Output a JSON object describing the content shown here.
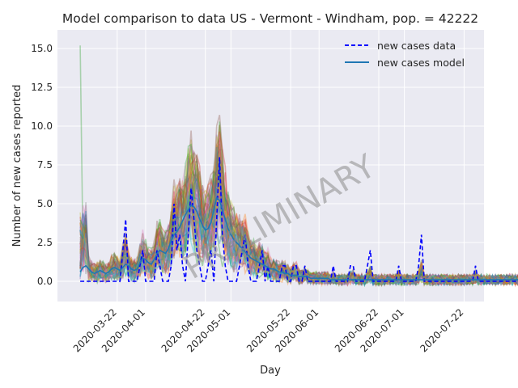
{
  "chart_data": {
    "type": "line",
    "title": "Model comparison to data US - Vermont - Windham, pop. = 42222",
    "xlabel": "Day",
    "ylabel": "Number of new cases reported",
    "x_start": "2020-03-09",
    "x_end": "2020-07-22",
    "xlim": [
      "2020-03-01",
      "2020-07-29"
    ],
    "ylim": [
      -1.3,
      16.2
    ],
    "y_ticks": [
      "0.0",
      "2.5",
      "5.0",
      "7.5",
      "10.0",
      "12.5",
      "15.0"
    ],
    "x_ticks": [
      "2020-03-22",
      "2020-04-01",
      "2020-04-22",
      "2020-05-01",
      "2020-05-22",
      "2020-06-01",
      "2020-06-22",
      "2020-07-01",
      "2020-07-22"
    ],
    "grid": true,
    "legend_position": "upper right",
    "watermark": "PRELIMINARY",
    "series": [
      {
        "name": "new cases data",
        "style": "dashed",
        "color": "#0000ff",
        "values": [
          0,
          0,
          0,
          0,
          0,
          0,
          0,
          0,
          0,
          0,
          0,
          0,
          0,
          0,
          0,
          2,
          4,
          0,
          0,
          0,
          0,
          1,
          2,
          0,
          0,
          0,
          0,
          2,
          1,
          0,
          0,
          0,
          1,
          5,
          2,
          3,
          1,
          0,
          3,
          6,
          4,
          2,
          1,
          0,
          0,
          1,
          2,
          0,
          4,
          8,
          3,
          1,
          0,
          0,
          0,
          0,
          1,
          2,
          3,
          1,
          0,
          0,
          0,
          1,
          2,
          0,
          1,
          0,
          0,
          0,
          0,
          1,
          1,
          0,
          0,
          1,
          1,
          0,
          0,
          1,
          0,
          0,
          0,
          0,
          0,
          0,
          0,
          0,
          0,
          1,
          0,
          0,
          0,
          0,
          0,
          1,
          1,
          0,
          0,
          0,
          0,
          1,
          2,
          0,
          0,
          0,
          0,
          0,
          0,
          0,
          0,
          0,
          1,
          0,
          0,
          0,
          0,
          0,
          0,
          1,
          3,
          0,
          0,
          0,
          0,
          0,
          0,
          0,
          0,
          0,
          0,
          0,
          0,
          0,
          0,
          0,
          0,
          0,
          0,
          1,
          0,
          0,
          0,
          0,
          0,
          0,
          0,
          0,
          0,
          0,
          0,
          0,
          0,
          0,
          0,
          0,
          0,
          0,
          0,
          0,
          1,
          0,
          0,
          1,
          0,
          0,
          0,
          0,
          0,
          0,
          0,
          0,
          0,
          0,
          0,
          1,
          0,
          0,
          0,
          0,
          0,
          0,
          0,
          0,
          0,
          0,
          0,
          0,
          0,
          0,
          1,
          2,
          4,
          2,
          0,
          0,
          0,
          1,
          0,
          0,
          1,
          0,
          0,
          0,
          0,
          1,
          0,
          0,
          0,
          0,
          0,
          1,
          3,
          1,
          0,
          0,
          0,
          0,
          0,
          0,
          1,
          0,
          0,
          1,
          0,
          0,
          0,
          0,
          0,
          0,
          0,
          0,
          0,
          0,
          0,
          0,
          0,
          0,
          0,
          0,
          0,
          0,
          0,
          0,
          0,
          0,
          0,
          0,
          0,
          0,
          0
        ]
      },
      {
        "name": "new cases model",
        "style": "solid",
        "color": "#1f77b4",
        "values": [
          0.6,
          0.9,
          1.0,
          0.8,
          0.6,
          0.5,
          0.6,
          0.7,
          0.6,
          0.5,
          0.6,
          0.8,
          0.9,
          0.8,
          0.7,
          0.9,
          1.1,
          1.0,
          0.8,
          0.7,
          0.8,
          1.2,
          1.5,
          1.4,
          1.2,
          1.1,
          1.4,
          1.8,
          2.0,
          1.9,
          1.8,
          2.1,
          2.6,
          3.0,
          3.2,
          3.5,
          3.9,
          4.3,
          4.6,
          4.9,
          4.8,
          4.5,
          4.0,
          3.6,
          3.3,
          3.4,
          3.8,
          4.6,
          5.4,
          5.2,
          4.6,
          4.0,
          3.4,
          3.0,
          2.7,
          2.5,
          2.3,
          2.1,
          1.9,
          1.7,
          1.5,
          1.4,
          1.3,
          1.2,
          1.1,
          1.0,
          0.9,
          0.8,
          0.8,
          0.7,
          0.6,
          0.6,
          0.5,
          0.5,
          0.4,
          0.4,
          0.4,
          0.3,
          0.3,
          0.3,
          0.3,
          0.2,
          0.2,
          0.2,
          0.2,
          0.2,
          0.2,
          0.2,
          0.1,
          0.1,
          0.1,
          0.1,
          0.1,
          0.1,
          0.1,
          0.1,
          0.1,
          0.1,
          0.1,
          0.1,
          0.1,
          0.1,
          0.1,
          0.1,
          0.1,
          0.1,
          0.1,
          0.1,
          0.1,
          0.1,
          0.1,
          0.1,
          0.1,
          0.1,
          0.1,
          0.1,
          0.1,
          0.1,
          0.1,
          0.1,
          0.1,
          0.1,
          0.1,
          0.1,
          0.1,
          0.1,
          0.1,
          0.1,
          0.1,
          0.1,
          0.1,
          0.1,
          0.1,
          0.1,
          0.1,
          0.1,
          0.1,
          0.1,
          0.1,
          0.1,
          0.1,
          0.1,
          0.1,
          0.1,
          0.1,
          0.1,
          0.1,
          0.1,
          0.1,
          0.1,
          0.1,
          0.1,
          0.1,
          0.1,
          0.1,
          0.1,
          0.1,
          0.1,
          0.1,
          0.1,
          0.1,
          0.1,
          0.1,
          0.1,
          0.1,
          0.1,
          0.1,
          0.1,
          0.1,
          0.1,
          0.1,
          0.1,
          0.1,
          0.1,
          0.1,
          0.1,
          0.1,
          0.1,
          0.1,
          0.1,
          0.1,
          0.1,
          0.1,
          0.1,
          0.1,
          0.1,
          0.1,
          0.1,
          0.1,
          0.1,
          0.1,
          0.1,
          0.1,
          0.1,
          0.1,
          0.1,
          0.1,
          0.1,
          0.1,
          0.1,
          0.1,
          0.1,
          0.1,
          0.1,
          0.1,
          0.1,
          0.1,
          0.1,
          0.1,
          0.1,
          0.1,
          0.1,
          0.1,
          0.1,
          0.1,
          0.1,
          0.1,
          0.1,
          0.1,
          0.1,
          0.1,
          0.1,
          0.1,
          0.1,
          0.1,
          0.1,
          0.1,
          0.1,
          0.1,
          0.1,
          0.1,
          0.1,
          0.1,
          0.1,
          0.1,
          0.1,
          0.1,
          0.1,
          0.1,
          0.1,
          0.1,
          0.1,
          0.1,
          0.1,
          0.1,
          0.1,
          0.1,
          0.1,
          0.1,
          0.1,
          0.1,
          0.1,
          0.1,
          0.1,
          0.2,
          0.3,
          0.4,
          0.5
        ]
      }
    ]
  },
  "theme": {
    "plot_bg": "#eaeaf2",
    "grid": "#ffffff",
    "text": "#262626",
    "ensemble_colors": [
      "#2ca02c",
      "#d62728",
      "#ff7f0e",
      "#9467bd",
      "#8c564b",
      "#e377c2",
      "#7f7f7f",
      "#bcbd22",
      "#17becf",
      "#1f77b4"
    ]
  }
}
